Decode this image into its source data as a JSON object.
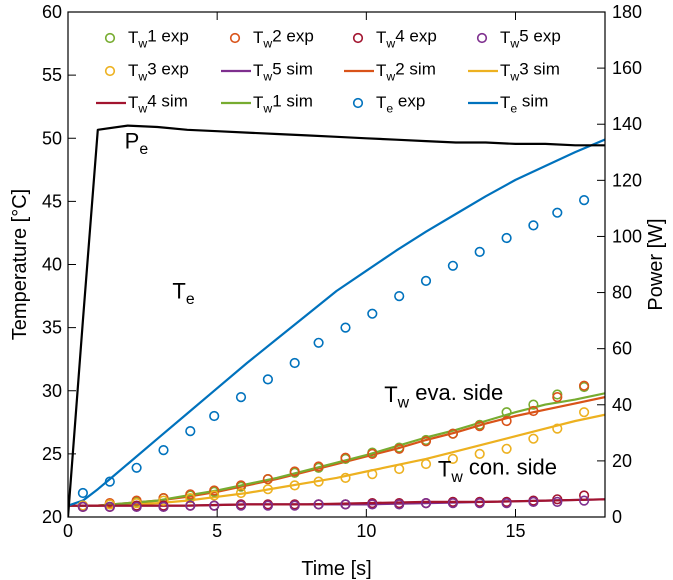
{
  "chart_data": {
    "type": "line",
    "xlabel": "Time [s]",
    "ylabel_left": "Temperature [°C]",
    "ylabel_right": "Power [W]",
    "xlim": [
      0,
      18
    ],
    "ylim_left": [
      20,
      60
    ],
    "ylim_right": [
      0,
      180
    ],
    "xticks": [
      0,
      5,
      10,
      15
    ],
    "yticks_left": [
      20,
      25,
      30,
      35,
      40,
      45,
      50,
      55,
      60
    ],
    "yticks_right": [
      0,
      20,
      40,
      60,
      80,
      100,
      120,
      140,
      160,
      180
    ],
    "grid": false,
    "legend_position": "top",
    "colors": {
      "Tw1": "#77ac30",
      "Tw2": "#d95319",
      "Tw3": "#edb120",
      "Tw4": "#a2142f",
      "Tw5": "#7e2f8e",
      "Te": "#0072bd",
      "Pe": "#000000"
    },
    "legend": [
      {
        "text": "T_w1 exp",
        "base": "T",
        "sub": "w",
        "rest": "1 exp",
        "kind": "marker",
        "color_key": "Tw1"
      },
      {
        "text": "T_w2 exp",
        "base": "T",
        "sub": "w",
        "rest": "2 exp",
        "kind": "marker",
        "color_key": "Tw2"
      },
      {
        "text": "T_w4 exp",
        "base": "T",
        "sub": "w",
        "rest": "4 exp",
        "kind": "marker",
        "color_key": "Tw4"
      },
      {
        "text": "T_w5 exp",
        "base": "T",
        "sub": "w",
        "rest": "5 exp",
        "kind": "marker",
        "color_key": "Tw5"
      },
      {
        "text": "T_w3 exp",
        "base": "T",
        "sub": "w",
        "rest": "3 exp",
        "kind": "marker",
        "color_key": "Tw3"
      },
      {
        "text": "T_w5 sim",
        "base": "T",
        "sub": "w",
        "rest": "5 sim",
        "kind": "line",
        "color_key": "Tw5"
      },
      {
        "text": "T_w2 sim",
        "base": "T",
        "sub": "w",
        "rest": "2 sim",
        "kind": "line",
        "color_key": "Tw2"
      },
      {
        "text": "T_w3 sim",
        "base": "T",
        "sub": "w",
        "rest": "3 sim",
        "kind": "line",
        "color_key": "Tw3"
      },
      {
        "text": "T_w4 sim",
        "base": "T",
        "sub": "w",
        "rest": "4 sim",
        "kind": "line",
        "color_key": "Tw4"
      },
      {
        "text": "T_w1 sim",
        "base": "T",
        "sub": "w",
        "rest": "1 sim",
        "kind": "line",
        "color_key": "Tw1"
      },
      {
        "text": "T_e exp",
        "base": "T",
        "sub": "e",
        "rest": " exp",
        "kind": "marker",
        "color_key": "Te"
      },
      {
        "text": "T_e sim",
        "base": "T",
        "sub": "e",
        "rest": " sim",
        "kind": "line",
        "color_key": "Te"
      }
    ],
    "annotations": [
      {
        "base": "P",
        "sub": "e",
        "rest": "",
        "x": 1.9,
        "y": 49.2
      },
      {
        "base": "T",
        "sub": "e",
        "rest": "",
        "x": 3.5,
        "y": 37.3
      },
      {
        "base": "T",
        "sub": "w",
        "rest": " eva. side",
        "x": 10.6,
        "y": 29.1
      },
      {
        "base": "T",
        "sub": "w",
        "rest": " con. side",
        "x": 12.4,
        "y": 23.2
      }
    ],
    "series_sim": [
      {
        "color_key": "Tw3",
        "axis": "left",
        "x": [
          0,
          1,
          2,
          3,
          4,
          5,
          6,
          7,
          8,
          9,
          10,
          11,
          12,
          13,
          14,
          15,
          16,
          17,
          18
        ],
        "y": [
          20.9,
          20.9,
          21.0,
          21.1,
          21.3,
          21.6,
          21.9,
          22.3,
          22.7,
          23.1,
          23.6,
          24.1,
          24.6,
          25.2,
          25.8,
          26.4,
          27.0,
          27.6,
          28.1
        ]
      },
      {
        "color_key": "Tw2",
        "axis": "left",
        "x": [
          0,
          1,
          2,
          3,
          4,
          5,
          6,
          7,
          8,
          9,
          10,
          11,
          12,
          13,
          14,
          15,
          16,
          17,
          18
        ],
        "y": [
          20.9,
          20.9,
          21.1,
          21.3,
          21.6,
          22.0,
          22.5,
          23.0,
          23.6,
          24.2,
          24.8,
          25.4,
          26.1,
          26.7,
          27.4,
          28.0,
          28.5,
          29.0,
          29.5
        ]
      },
      {
        "color_key": "Tw1",
        "axis": "left",
        "x": [
          0,
          1,
          2,
          3,
          4,
          5,
          6,
          7,
          8,
          9,
          10,
          11,
          12,
          13,
          14,
          15,
          16,
          17,
          18
        ],
        "y": [
          20.9,
          20.9,
          21.1,
          21.3,
          21.7,
          22.1,
          22.6,
          23.1,
          23.7,
          24.3,
          24.9,
          25.6,
          26.3,
          26.9,
          27.6,
          28.3,
          28.9,
          29.3,
          29.8
        ]
      },
      {
        "color_key": "Tw5",
        "axis": "left",
        "x": [
          0,
          2,
          4,
          6,
          8,
          10,
          12,
          14,
          16,
          18
        ],
        "y": [
          20.9,
          20.9,
          20.9,
          21.0,
          21.0,
          21.0,
          21.1,
          21.2,
          21.3,
          21.4
        ]
      },
      {
        "color_key": "Tw4",
        "axis": "left",
        "x": [
          0,
          2,
          4,
          6,
          8,
          10,
          12,
          14,
          16,
          18
        ],
        "y": [
          20.9,
          20.9,
          20.9,
          21.0,
          21.0,
          21.1,
          21.2,
          21.2,
          21.3,
          21.4
        ]
      },
      {
        "color_key": "Te",
        "axis": "left",
        "x": [
          0,
          0.5,
          1,
          1.5,
          2,
          3,
          4,
          5,
          6,
          7,
          8,
          9,
          10,
          11,
          12,
          13,
          14,
          15,
          16,
          17,
          18
        ],
        "y": [
          20.9,
          21.3,
          22.2,
          23.2,
          24.2,
          26.2,
          28.2,
          30.2,
          32.2,
          34.1,
          36.0,
          37.9,
          39.5,
          41.1,
          42.6,
          44.0,
          45.4,
          46.7,
          47.8,
          48.9,
          49.9
        ]
      },
      {
        "color_key": "Pe",
        "axis": "right",
        "x": [
          0,
          0.5,
          1,
          2,
          3,
          4,
          5,
          6,
          7,
          8,
          9,
          10,
          11,
          12,
          13,
          14,
          15,
          16,
          17,
          18
        ],
        "y": [
          0,
          70,
          138,
          139.5,
          139,
          138,
          137.5,
          137,
          136.5,
          136,
          135.5,
          135,
          134.5,
          134,
          133.5,
          133.5,
          133,
          133,
          132.5,
          132.5
        ]
      }
    ],
    "series_exp": [
      {
        "color_key": "Te",
        "x": [
          0.5,
          1.4,
          2.3,
          3.2,
          4.1,
          4.9,
          5.8,
          6.7,
          7.6,
          8.4,
          9.3,
          10.2,
          11.1,
          12.0,
          12.9,
          13.8,
          14.7,
          15.6,
          16.4,
          17.3
        ],
        "y": [
          21.9,
          22.8,
          23.9,
          25.3,
          26.8,
          28.0,
          29.5,
          30.9,
          32.2,
          33.8,
          35.0,
          36.1,
          37.5,
          38.7,
          39.9,
          41.0,
          42.1,
          43.1,
          44.1,
          45.1
        ]
      },
      {
        "color_key": "Tw1",
        "x": [
          0.5,
          1.4,
          2.3,
          3.2,
          4.1,
          4.9,
          5.8,
          6.7,
          7.6,
          8.4,
          9.3,
          10.2,
          11.1,
          12.0,
          12.9,
          13.8,
          14.7,
          15.6,
          16.4,
          17.3
        ],
        "y": [
          20.9,
          21.0,
          21.2,
          21.5,
          21.7,
          22.0,
          22.4,
          23.0,
          23.5,
          23.9,
          24.6,
          25.1,
          25.5,
          26.1,
          26.6,
          27.3,
          28.3,
          28.9,
          29.7,
          30.3
        ]
      },
      {
        "color_key": "Tw2",
        "x": [
          0.5,
          1.4,
          2.3,
          3.2,
          4.1,
          4.9,
          5.8,
          6.7,
          7.6,
          8.4,
          9.3,
          10.2,
          11.1,
          12.0,
          12.9,
          13.8,
          14.7,
          15.6,
          16.4,
          17.3
        ],
        "y": [
          20.9,
          21.1,
          21.3,
          21.5,
          21.8,
          22.1,
          22.5,
          23.0,
          23.6,
          24.0,
          24.7,
          25.0,
          25.4,
          26.0,
          26.6,
          27.2,
          27.6,
          28.4,
          29.5,
          30.4
        ]
      },
      {
        "color_key": "Tw3",
        "x": [
          0.5,
          1.4,
          2.3,
          3.2,
          4.1,
          4.9,
          5.8,
          6.7,
          7.6,
          8.4,
          9.3,
          10.2,
          11.1,
          12.0,
          12.9,
          13.8,
          14.7,
          15.6,
          16.4,
          17.3
        ],
        "y": [
          20.9,
          21.0,
          21.1,
          21.3,
          21.5,
          21.7,
          21.9,
          22.2,
          22.5,
          22.8,
          23.1,
          23.4,
          23.8,
          24.2,
          24.6,
          25.0,
          25.4,
          26.2,
          27.0,
          28.3
        ]
      },
      {
        "color_key": "Tw4",
        "x": [
          0.5,
          1.4,
          2.3,
          3.2,
          4.1,
          4.9,
          5.8,
          6.7,
          7.6,
          8.4,
          9.3,
          10.2,
          11.1,
          12.0,
          12.9,
          13.8,
          14.7,
          15.6,
          16.4,
          17.3
        ],
        "y": [
          20.8,
          20.8,
          20.9,
          20.9,
          20.9,
          20.9,
          21.0,
          21.0,
          21.0,
          21.0,
          21.0,
          21.1,
          21.1,
          21.1,
          21.2,
          21.2,
          21.2,
          21.3,
          21.4,
          21.7
        ]
      },
      {
        "color_key": "Tw5",
        "x": [
          0.5,
          1.4,
          2.3,
          3.2,
          4.1,
          4.9,
          5.8,
          6.7,
          7.6,
          8.4,
          9.3,
          10.2,
          11.1,
          12.0,
          12.9,
          13.8,
          14.7,
          15.6,
          16.4,
          17.3
        ],
        "y": [
          20.8,
          20.8,
          20.8,
          20.8,
          20.9,
          20.9,
          20.9,
          20.9,
          20.9,
          21.0,
          21.0,
          21.0,
          21.0,
          21.1,
          21.1,
          21.1,
          21.1,
          21.2,
          21.2,
          21.3
        ]
      }
    ]
  }
}
